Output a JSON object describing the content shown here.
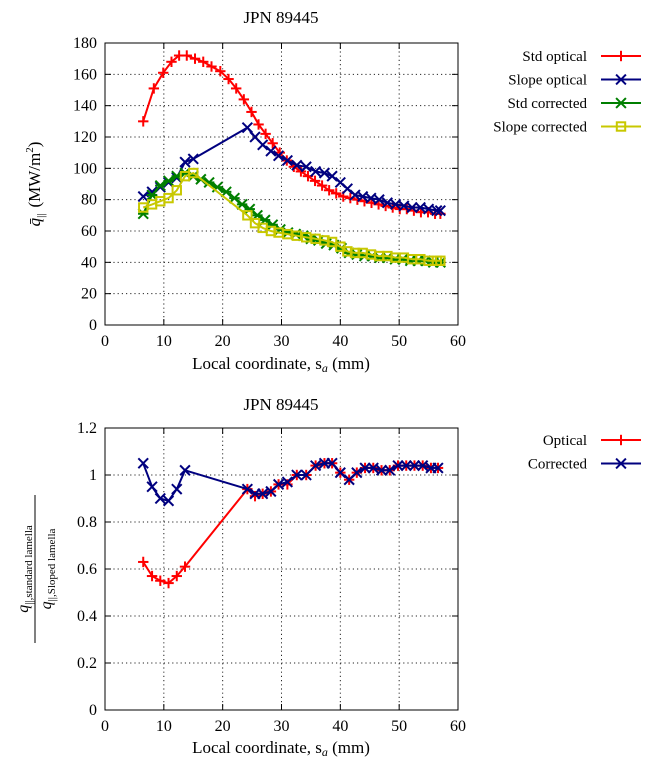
{
  "chart_data": [
    {
      "type": "line",
      "title": "JPN 89445",
      "xlabel": "Local coordinate, s",
      "xlabel_sub": "a",
      "xlabel_unit": " (mm)",
      "ylabel_symbol": "q̄",
      "ylabel_sub": "||",
      "ylabel_unit_open": "(MW/m",
      "ylabel_unit_sup": "2",
      "ylabel_unit_close": ")",
      "xlim": [
        0,
        60
      ],
      "ylim": [
        0,
        180
      ],
      "xticks": [
        0,
        10,
        20,
        30,
        40,
        50,
        60
      ],
      "yticks": [
        0,
        20,
        40,
        60,
        80,
        100,
        120,
        140,
        160,
        180
      ],
      "ytick_labels": [
        "0",
        "20",
        "40",
        "60",
        "80",
        "100",
        "120",
        "140",
        "160",
        "180"
      ],
      "grid": true,
      "legend_position": "right",
      "series": [
        {
          "name": "Std optical",
          "color": "#ff0000",
          "marker": "plus",
          "x": [
            6.5,
            8.3,
            9.9,
            11.3,
            12.6,
            13.9,
            15.3,
            16.7,
            18.1,
            19.6,
            21.0,
            22.3,
            23.6,
            24.9,
            26.1,
            27.3,
            28.5,
            29.7,
            30.9,
            32.1,
            33.3,
            34.5,
            35.7,
            36.9,
            38.1,
            39.3,
            40.5,
            41.7,
            42.9,
            44.1,
            45.3,
            46.5,
            47.7,
            48.9,
            50.1,
            51.3,
            52.5,
            53.7,
            54.9,
            56.1,
            57.0
          ],
          "y": [
            130,
            151,
            161,
            168,
            172,
            172,
            170,
            168,
            165,
            162,
            157,
            151,
            144,
            136,
            128,
            122,
            116,
            110,
            105,
            101,
            98,
            95,
            92,
            89,
            86,
            84,
            82,
            81,
            80,
            79,
            78,
            77,
            76,
            75,
            74,
            74,
            73,
            72,
            72,
            71,
            71
          ]
        },
        {
          "name": "Slope optical",
          "color": "#00007f",
          "marker": "cross",
          "x": [
            6.5,
            8.0,
            9.4,
            10.8,
            12.2,
            13.6,
            15.0,
            24.2,
            25.5,
            26.8,
            28.2,
            29.5,
            31.0,
            32.6,
            34.2,
            35.8,
            37.3,
            38.6,
            40.0,
            41.2,
            42.5,
            43.8,
            45.2,
            46.6,
            48.0,
            49.4,
            50.8,
            52.2,
            53.6,
            55.0,
            56.4,
            57.0
          ],
          "y": [
            82,
            85,
            88,
            91,
            94,
            104,
            106,
            126,
            120,
            115,
            111,
            108,
            105,
            102,
            101,
            98,
            97,
            95,
            91,
            87,
            83,
            82,
            81,
            80,
            78,
            77,
            76,
            75,
            75,
            74,
            73,
            73
          ]
        },
        {
          "name": "Std corrected",
          "color": "#007f00",
          "marker": "xbox",
          "x": [
            6.5,
            8.0,
            9.4,
            10.8,
            12.2,
            13.6,
            15.0,
            16.3,
            17.7,
            19.1,
            20.6,
            22.0,
            23.3,
            24.6,
            25.9,
            27.2,
            28.5,
            29.8,
            31.1,
            32.4,
            33.7,
            35.0,
            36.3,
            37.6,
            38.9,
            40.2,
            41.5,
            42.8,
            44.1,
            45.4,
            46.7,
            48.0,
            49.3,
            50.6,
            51.9,
            53.2,
            54.5,
            55.8,
            57.0
          ],
          "y": [
            71,
            83,
            89,
            92,
            95,
            97,
            95,
            93,
            91,
            88,
            85,
            81,
            77,
            74,
            70,
            67,
            64,
            61,
            59,
            58,
            57,
            55,
            54,
            52,
            51,
            49,
            46,
            45,
            44,
            44,
            43,
            43,
            42,
            42,
            41,
            41,
            41,
            40,
            40
          ]
        },
        {
          "name": "Slope corrected",
          "color": "#c8c800",
          "marker": "square",
          "x": [
            6.5,
            8.0,
            9.4,
            10.8,
            12.2,
            13.6,
            15.0,
            24.2,
            25.5,
            26.8,
            28.2,
            29.5,
            31.0,
            32.6,
            34.2,
            35.8,
            37.3,
            38.6,
            40.0,
            41.2,
            42.5,
            43.8,
            45.2,
            46.6,
            48.0,
            49.4,
            50.8,
            52.2,
            53.6,
            55.0,
            56.4,
            57.0
          ],
          "y": [
            75,
            77,
            79,
            81,
            86,
            95,
            97,
            70,
            65,
            62,
            60,
            59,
            58,
            57,
            56,
            55,
            54,
            53,
            50,
            47,
            46,
            46,
            45,
            44,
            44,
            43,
            43,
            42,
            42,
            41,
            41,
            41
          ]
        }
      ]
    },
    {
      "type": "line",
      "title": "JPN 89445",
      "xlabel": "Local coordinate, s",
      "xlabel_sub": "a",
      "xlabel_unit": " (mm)",
      "ylabel_num": "q",
      "ylabel_num_sub": "||,standard lamella",
      "ylabel_den": "q",
      "ylabel_den_sub": "||,Sloped lamella",
      "xlim": [
        0,
        60
      ],
      "ylim": [
        0,
        1.2
      ],
      "xticks": [
        0,
        10,
        20,
        30,
        40,
        50,
        60
      ],
      "yticks": [
        0,
        0.2,
        0.4,
        0.6,
        0.8,
        1.0,
        1.2
      ],
      "ytick_labels": [
        "0",
        "0.2",
        "0.4",
        "0.6",
        "0.8",
        "1",
        "1.2"
      ],
      "grid": true,
      "legend_position": "right",
      "series": [
        {
          "name": "Optical",
          "color": "#ff0000",
          "marker": "plus",
          "x": [
            6.5,
            8.0,
            9.4,
            10.8,
            12.2,
            13.6,
            24.2,
            25.5,
            26.8,
            28.2,
            29.5,
            31.0,
            32.6,
            34.2,
            35.8,
            37.3,
            38.6,
            40.0,
            41.5,
            42.8,
            44.2,
            45.6,
            47.0,
            48.4,
            49.8,
            51.2,
            52.6,
            54.0,
            55.4,
            56.6
          ],
          "y": [
            0.63,
            0.57,
            0.55,
            0.54,
            0.57,
            0.61,
            0.94,
            0.91,
            0.92,
            0.93,
            0.96,
            0.96,
            1.0,
            1.0,
            1.04,
            1.05,
            1.05,
            1.01,
            0.98,
            1.01,
            1.03,
            1.03,
            1.02,
            1.02,
            1.04,
            1.04,
            1.04,
            1.04,
            1.03,
            1.03
          ]
        },
        {
          "name": "Corrected",
          "color": "#00007f",
          "marker": "cross",
          "x": [
            6.5,
            8.0,
            9.4,
            10.8,
            12.2,
            13.6,
            24.2,
            25.5,
            26.8,
            28.2,
            29.5,
            31.0,
            32.6,
            34.2,
            35.8,
            37.3,
            38.6,
            40.0,
            41.5,
            42.8,
            44.2,
            45.6,
            47.0,
            48.4,
            49.8,
            51.2,
            52.6,
            54.0,
            55.4,
            56.6
          ],
          "y": [
            1.05,
            0.95,
            0.9,
            0.89,
            0.94,
            1.02,
            0.94,
            0.92,
            0.92,
            0.93,
            0.96,
            0.97,
            1.0,
            1.0,
            1.04,
            1.05,
            1.05,
            1.01,
            0.98,
            1.01,
            1.03,
            1.03,
            1.02,
            1.02,
            1.04,
            1.04,
            1.04,
            1.04,
            1.03,
            1.03
          ]
        }
      ]
    }
  ]
}
